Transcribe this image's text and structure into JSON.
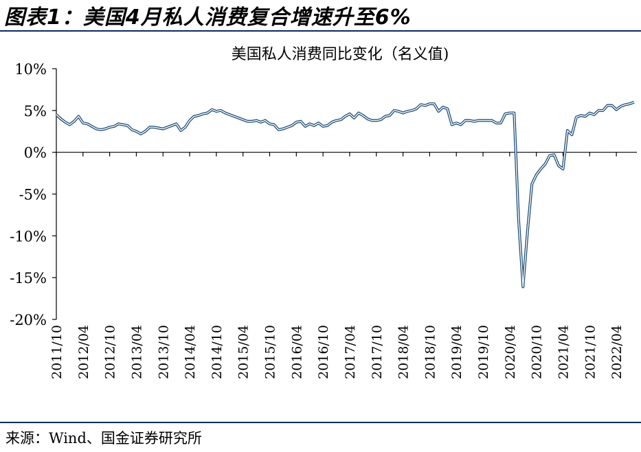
{
  "figure": {
    "title": "图表1：美国4月私人消费复合增速升至6%",
    "source": "来源：Wind、国金证券研究所"
  },
  "colors": {
    "line": "#1f4e79",
    "line_outer": "#1f4e79",
    "axis": "#000000"
  },
  "chart_data": {
    "type": "line",
    "title": "美国私人消费同比变化（名义值)",
    "xlabel": "",
    "ylabel": "",
    "ylim": [
      -20,
      10
    ],
    "yticks": [
      10,
      5,
      0,
      -5,
      -10,
      -15,
      -20
    ],
    "ytick_labels": [
      "10%",
      "5%",
      "0%",
      "-5%",
      "-10%",
      "-15%",
      "-20%"
    ],
    "xtick_labels": [
      "2011/10",
      "2012/04",
      "2012/10",
      "2013/04",
      "2013/10",
      "2014/04",
      "2014/10",
      "2015/04",
      "2015/10",
      "2016/04",
      "2016/10",
      "2017/04",
      "2017/10",
      "2018/04",
      "2018/10",
      "2019/04",
      "2019/10",
      "2020/04",
      "2020/10",
      "2021/04",
      "2021/10",
      "2022/04"
    ],
    "grid": false,
    "series": [
      {
        "start": "2011/10",
        "frequency": "monthly",
        "values": [
          4.5,
          4.0,
          3.6,
          3.3,
          3.7,
          4.3,
          3.5,
          3.4,
          3.1,
          2.8,
          2.7,
          2.8,
          3.0,
          3.1,
          3.4,
          3.3,
          3.2,
          2.7,
          2.5,
          2.2,
          2.5,
          3.0,
          3.0,
          2.9,
          2.8,
          3.0,
          3.2,
          3.4,
          2.6,
          3.0,
          3.8,
          4.3,
          4.4,
          4.6,
          4.7,
          5.1,
          4.9,
          5.0,
          4.7,
          4.5,
          4.3,
          4.1,
          3.9,
          3.7,
          3.7,
          3.8,
          3.6,
          3.8,
          3.4,
          3.3,
          2.7,
          2.8,
          3.0,
          3.2,
          3.6,
          3.7,
          3.1,
          3.4,
          3.2,
          3.5,
          3.1,
          3.2,
          3.6,
          3.8,
          3.9,
          4.3,
          4.6,
          4.1,
          4.7,
          4.4,
          4.0,
          3.8,
          3.8,
          3.9,
          4.3,
          4.4,
          5.0,
          4.9,
          4.7,
          4.9,
          5.0,
          5.2,
          5.7,
          5.6,
          5.8,
          5.8,
          4.9,
          5.4,
          5.2,
          3.3,
          3.5,
          3.3,
          3.8,
          3.8,
          3.7,
          3.8,
          3.8,
          3.8,
          3.8,
          3.5,
          3.5,
          4.6,
          4.7,
          4.7,
          -8.0,
          -16.1,
          -9.5,
          -3.8,
          -2.7,
          -2.0,
          -1.4,
          -0.4,
          -0.3,
          -1.6,
          -2.0,
          2.6,
          2.1,
          4.2,
          4.4,
          4.3,
          4.7,
          4.5,
          5.0,
          5.0,
          5.6,
          5.6,
          5.1,
          5.5,
          5.7,
          5.8,
          6.0
        ]
      }
    ]
  }
}
